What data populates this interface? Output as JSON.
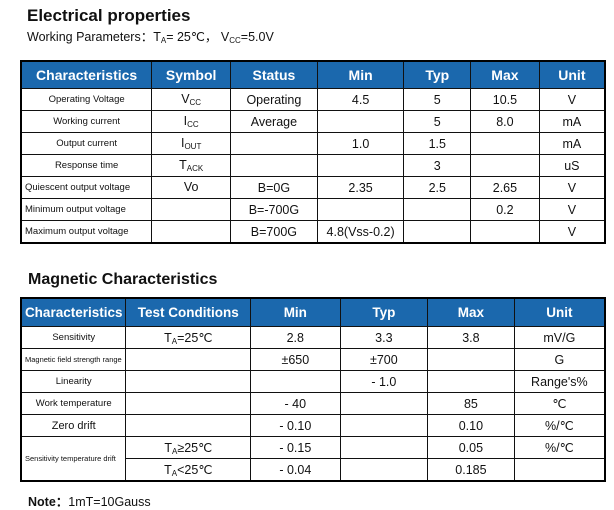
{
  "title": "Electrical properties",
  "subtitle": {
    "label": "Working Parameters：",
    "ta": "T",
    "ta_sub": "A",
    "ta_val": "= 25℃，",
    "vcc": "V",
    "vcc_sub": "CC",
    "vcc_val": "=5.0V"
  },
  "electrical": {
    "headers": [
      "Characteristics",
      "Symbol",
      "Status",
      "Min",
      "Typ",
      "Max",
      "Unit"
    ],
    "rows": [
      {
        "name": "Operating Voltage",
        "sym": "V",
        "sub": "CC",
        "status": "Operating",
        "min": "4.5",
        "typ": "5",
        "max": "10.5",
        "unit": "V"
      },
      {
        "name": "Working current",
        "sym": "I",
        "sub": "CC",
        "status": "Average",
        "min": "",
        "typ": "5",
        "max": "8.0",
        "unit": "mA"
      },
      {
        "name": "Output current",
        "sym": "I",
        "sub": "OUT",
        "status": "",
        "min": "1.0",
        "typ": "1.5",
        "max": "",
        "unit": "mA"
      },
      {
        "name": "Response time",
        "sym": "T",
        "sub": "ACK",
        "status": "",
        "min": "",
        "typ": "3",
        "max": "",
        "unit": "uS"
      },
      {
        "name": "Quiescent output voltage",
        "sym": "Vo",
        "sub": "",
        "status": "B=0G",
        "min": "2.35",
        "typ": "2.5",
        "max": "2.65",
        "unit": "V"
      },
      {
        "name": "Minimum output voltage",
        "sym": "",
        "sub": "",
        "status": "B=-700G",
        "min": "",
        "typ": "",
        "max": "0.2",
        "unit": "V"
      },
      {
        "name": "Maximum output voltage",
        "sym": "",
        "sub": "",
        "status": "B=700G",
        "min": "4.8(Vss-0.2)",
        "typ": "",
        "max": "",
        "unit": "V"
      }
    ]
  },
  "magnetic_title": "Magnetic Characteristics",
  "magnetic": {
    "headers": [
      "Characteristics",
      "Test Conditions",
      "Min",
      "Typ",
      "Max",
      "Unit"
    ],
    "rows": [
      {
        "name": "Sensitivity",
        "cond": "T",
        "csub": "A",
        "cval": "=25℃",
        "min": "2.8",
        "typ": "3.3",
        "max": "3.8",
        "unit": "mV/G"
      },
      {
        "name": "Magnetic field strength range",
        "cond": "",
        "csub": "",
        "cval": "",
        "min": "±650",
        "typ": "±700",
        "max": "",
        "unit": "G"
      },
      {
        "name": "Linearity",
        "cond": "",
        "csub": "",
        "cval": "",
        "min": "",
        "typ": "- 1.0",
        "max": "",
        "unit": "Range's%"
      },
      {
        "name": "Work temperature",
        "cond": "",
        "csub": "",
        "cval": "",
        "min": "- 40",
        "typ": "",
        "max": "85",
        "unit": "℃"
      },
      {
        "name": "Zero drift",
        "cond": "",
        "csub": "",
        "cval": "",
        "min": "- 0.10",
        "typ": "",
        "max": "0.10",
        "unit": "%/℃"
      },
      {
        "name": "Sensitivity temperature drift",
        "cond": "T",
        "csub": "A",
        "cval": "≥25℃",
        "min": "- 0.15",
        "typ": "",
        "max": "0.05",
        "unit": "%/℃"
      },
      {
        "name": "",
        "cond": "T",
        "csub": "A",
        "cval": "<25℃",
        "min": "- 0.04",
        "typ": "",
        "max": "0.185",
        "unit": ""
      }
    ]
  },
  "note": {
    "label": "Note：",
    "text": "1mT=10Gauss"
  },
  "colors": {
    "header_bg": "#1b68ad",
    "header_text": "#ffffff"
  }
}
